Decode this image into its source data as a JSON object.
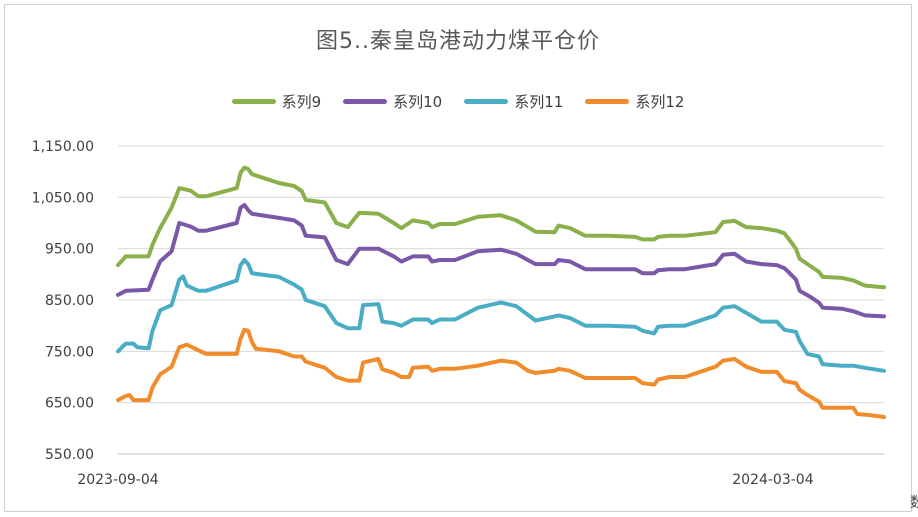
{
  "chart_data": {
    "type": "line",
    "title": "图5..秦皇岛港动力煤平仓价",
    "xlabel": "",
    "ylabel": "",
    "ylim": [
      550,
      1150
    ],
    "y_ticks": [
      "1,150.00",
      "1,050.00",
      "950.00",
      "850.00",
      "750.00",
      "650.00",
      "550.00"
    ],
    "y_tick_values": [
      1150,
      1050,
      950,
      850,
      750,
      650,
      550
    ],
    "x_tick_labels": [
      {
        "label": "2023-09-04",
        "t": 0
      },
      {
        "label": "2024-03-04",
        "t": 0.855
      }
    ],
    "legend_position": "top",
    "gridlines": "horizontal",
    "series": [
      {
        "name": "系列9",
        "color": "#8AB04B",
        "points": [
          [
            0,
            918
          ],
          [
            0.01,
            935
          ],
          [
            0.04,
            935
          ],
          [
            0.045,
            958
          ],
          [
            0.055,
            990
          ],
          [
            0.07,
            1030
          ],
          [
            0.08,
            1068
          ],
          [
            0.095,
            1063
          ],
          [
            0.105,
            1052
          ],
          [
            0.115,
            1052
          ],
          [
            0.155,
            1068
          ],
          [
            0.16,
            1098
          ],
          [
            0.165,
            1108
          ],
          [
            0.17,
            1105
          ],
          [
            0.175,
            1095
          ],
          [
            0.21,
            1078
          ],
          [
            0.23,
            1072
          ],
          [
            0.24,
            1062
          ],
          [
            0.245,
            1045
          ],
          [
            0.27,
            1040
          ],
          [
            0.285,
            1000
          ],
          [
            0.3,
            992
          ],
          [
            0.315,
            1020
          ],
          [
            0.34,
            1018
          ],
          [
            0.36,
            1000
          ],
          [
            0.37,
            990
          ],
          [
            0.385,
            1005
          ],
          [
            0.405,
            1000
          ],
          [
            0.41,
            992
          ],
          [
            0.42,
            998
          ],
          [
            0.44,
            998
          ],
          [
            0.47,
            1012
          ],
          [
            0.5,
            1015
          ],
          [
            0.52,
            1005
          ],
          [
            0.545,
            983
          ],
          [
            0.57,
            982
          ],
          [
            0.575,
            995
          ],
          [
            0.59,
            990
          ],
          [
            0.61,
            975
          ],
          [
            0.64,
            975
          ],
          [
            0.675,
            973
          ],
          [
            0.685,
            968
          ],
          [
            0.7,
            968
          ],
          [
            0.705,
            973
          ],
          [
            0.72,
            975
          ],
          [
            0.74,
            975
          ],
          [
            0.78,
            982
          ],
          [
            0.79,
            1002
          ],
          [
            0.805,
            1004
          ],
          [
            0.82,
            992
          ],
          [
            0.84,
            990
          ],
          [
            0.86,
            985
          ],
          [
            0.87,
            980
          ],
          [
            0.875,
            970
          ],
          [
            0.885,
            950
          ],
          [
            0.89,
            930
          ],
          [
            0.905,
            915
          ],
          [
            0.915,
            905
          ],
          [
            0.92,
            895
          ],
          [
            0.945,
            893
          ],
          [
            0.96,
            888
          ],
          [
            0.975,
            878
          ],
          [
            1,
            875
          ]
        ]
      },
      {
        "name": "系列10",
        "color": "#7B57A8",
        "points": [
          [
            0,
            860
          ],
          [
            0.01,
            868
          ],
          [
            0.04,
            870
          ],
          [
            0.045,
            890
          ],
          [
            0.055,
            925
          ],
          [
            0.07,
            945
          ],
          [
            0.08,
            1000
          ],
          [
            0.095,
            993
          ],
          [
            0.105,
            985
          ],
          [
            0.115,
            985
          ],
          [
            0.155,
            1000
          ],
          [
            0.16,
            1030
          ],
          [
            0.165,
            1035
          ],
          [
            0.17,
            1025
          ],
          [
            0.175,
            1018
          ],
          [
            0.21,
            1010
          ],
          [
            0.23,
            1005
          ],
          [
            0.24,
            995
          ],
          [
            0.245,
            975
          ],
          [
            0.27,
            972
          ],
          [
            0.285,
            928
          ],
          [
            0.3,
            920
          ],
          [
            0.315,
            950
          ],
          [
            0.34,
            950
          ],
          [
            0.36,
            935
          ],
          [
            0.37,
            925
          ],
          [
            0.385,
            935
          ],
          [
            0.405,
            935
          ],
          [
            0.41,
            925
          ],
          [
            0.42,
            928
          ],
          [
            0.44,
            928
          ],
          [
            0.47,
            945
          ],
          [
            0.5,
            948
          ],
          [
            0.52,
            940
          ],
          [
            0.545,
            920
          ],
          [
            0.57,
            920
          ],
          [
            0.575,
            928
          ],
          [
            0.59,
            925
          ],
          [
            0.61,
            910
          ],
          [
            0.64,
            910
          ],
          [
            0.675,
            910
          ],
          [
            0.685,
            902
          ],
          [
            0.7,
            902
          ],
          [
            0.705,
            908
          ],
          [
            0.72,
            910
          ],
          [
            0.74,
            910
          ],
          [
            0.78,
            920
          ],
          [
            0.79,
            938
          ],
          [
            0.805,
            940
          ],
          [
            0.82,
            925
          ],
          [
            0.84,
            920
          ],
          [
            0.86,
            918
          ],
          [
            0.87,
            912
          ],
          [
            0.875,
            905
          ],
          [
            0.885,
            890
          ],
          [
            0.89,
            868
          ],
          [
            0.905,
            855
          ],
          [
            0.915,
            845
          ],
          [
            0.92,
            835
          ],
          [
            0.945,
            833
          ],
          [
            0.96,
            828
          ],
          [
            0.975,
            820
          ],
          [
            1,
            818
          ]
        ]
      },
      {
        "name": "系列11",
        "color": "#4AADC6",
        "points": [
          [
            0,
            750
          ],
          [
            0.01,
            765
          ],
          [
            0.02,
            765
          ],
          [
            0.025,
            758
          ],
          [
            0.04,
            756
          ],
          [
            0.045,
            790
          ],
          [
            0.055,
            830
          ],
          [
            0.07,
            840
          ],
          [
            0.08,
            890
          ],
          [
            0.085,
            896
          ],
          [
            0.09,
            878
          ],
          [
            0.105,
            868
          ],
          [
            0.115,
            868
          ],
          [
            0.155,
            888
          ],
          [
            0.16,
            918
          ],
          [
            0.165,
            928
          ],
          [
            0.17,
            920
          ],
          [
            0.175,
            902
          ],
          [
            0.21,
            895
          ],
          [
            0.23,
            880
          ],
          [
            0.24,
            870
          ],
          [
            0.245,
            850
          ],
          [
            0.27,
            838
          ],
          [
            0.285,
            805
          ],
          [
            0.3,
            795
          ],
          [
            0.315,
            795
          ],
          [
            0.32,
            840
          ],
          [
            0.34,
            842
          ],
          [
            0.345,
            808
          ],
          [
            0.36,
            805
          ],
          [
            0.37,
            800
          ],
          [
            0.385,
            812
          ],
          [
            0.405,
            812
          ],
          [
            0.41,
            805
          ],
          [
            0.42,
            812
          ],
          [
            0.44,
            812
          ],
          [
            0.47,
            835
          ],
          [
            0.5,
            845
          ],
          [
            0.52,
            838
          ],
          [
            0.545,
            810
          ],
          [
            0.57,
            818
          ],
          [
            0.575,
            820
          ],
          [
            0.59,
            815
          ],
          [
            0.61,
            800
          ],
          [
            0.64,
            800
          ],
          [
            0.675,
            798
          ],
          [
            0.685,
            790
          ],
          [
            0.7,
            785
          ],
          [
            0.705,
            798
          ],
          [
            0.72,
            800
          ],
          [
            0.74,
            800
          ],
          [
            0.78,
            820
          ],
          [
            0.79,
            835
          ],
          [
            0.805,
            838
          ],
          [
            0.82,
            825
          ],
          [
            0.84,
            808
          ],
          [
            0.86,
            808
          ],
          [
            0.87,
            792
          ],
          [
            0.885,
            788
          ],
          [
            0.89,
            770
          ],
          [
            0.9,
            745
          ],
          [
            0.915,
            740
          ],
          [
            0.92,
            725
          ],
          [
            0.945,
            722
          ],
          [
            0.96,
            722
          ],
          [
            0.975,
            718
          ],
          [
            1,
            712
          ]
        ]
      },
      {
        "name": "系列12",
        "color": "#F18C2D",
        "points": [
          [
            0,
            655
          ],
          [
            0.01,
            663
          ],
          [
            0.015,
            665
          ],
          [
            0.02,
            655
          ],
          [
            0.04,
            655
          ],
          [
            0.045,
            680
          ],
          [
            0.055,
            705
          ],
          [
            0.07,
            720
          ],
          [
            0.08,
            758
          ],
          [
            0.09,
            763
          ],
          [
            0.105,
            752
          ],
          [
            0.115,
            745
          ],
          [
            0.155,
            745
          ],
          [
            0.16,
            775
          ],
          [
            0.165,
            792
          ],
          [
            0.17,
            790
          ],
          [
            0.175,
            768
          ],
          [
            0.18,
            755
          ],
          [
            0.21,
            750
          ],
          [
            0.23,
            740
          ],
          [
            0.24,
            740
          ],
          [
            0.245,
            730
          ],
          [
            0.27,
            718
          ],
          [
            0.285,
            700
          ],
          [
            0.3,
            693
          ],
          [
            0.315,
            693
          ],
          [
            0.32,
            728
          ],
          [
            0.34,
            735
          ],
          [
            0.345,
            715
          ],
          [
            0.36,
            708
          ],
          [
            0.37,
            700
          ],
          [
            0.38,
            700
          ],
          [
            0.385,
            718
          ],
          [
            0.405,
            720
          ],
          [
            0.41,
            712
          ],
          [
            0.42,
            716
          ],
          [
            0.44,
            716
          ],
          [
            0.47,
            722
          ],
          [
            0.5,
            732
          ],
          [
            0.52,
            728
          ],
          [
            0.535,
            712
          ],
          [
            0.545,
            708
          ],
          [
            0.57,
            712
          ],
          [
            0.575,
            716
          ],
          [
            0.59,
            712
          ],
          [
            0.61,
            698
          ],
          [
            0.64,
            698
          ],
          [
            0.675,
            698
          ],
          [
            0.685,
            688
          ],
          [
            0.7,
            685
          ],
          [
            0.705,
            695
          ],
          [
            0.72,
            700
          ],
          [
            0.74,
            700
          ],
          [
            0.78,
            720
          ],
          [
            0.79,
            732
          ],
          [
            0.805,
            735
          ],
          [
            0.82,
            720
          ],
          [
            0.84,
            710
          ],
          [
            0.86,
            710
          ],
          [
            0.87,
            692
          ],
          [
            0.885,
            688
          ],
          [
            0.89,
            675
          ],
          [
            0.9,
            665
          ],
          [
            0.915,
            652
          ],
          [
            0.92,
            640
          ],
          [
            0.945,
            640
          ],
          [
            0.96,
            640
          ],
          [
            0.965,
            628
          ],
          [
            0.98,
            626
          ],
          [
            1,
            622
          ]
        ]
      }
    ]
  },
  "corner_glyph": "数"
}
